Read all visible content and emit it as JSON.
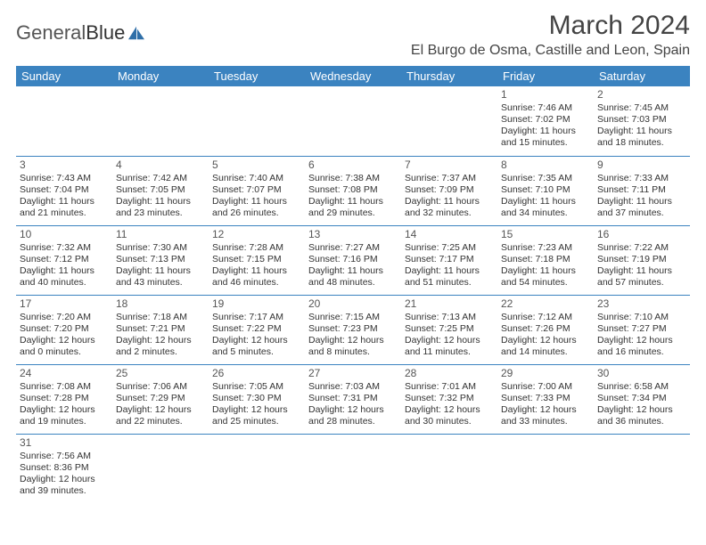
{
  "brand": {
    "part1": "General",
    "part2": "Blue"
  },
  "title": "March 2024",
  "location": "El Burgo de Osma, Castille and Leon, Spain",
  "colors": {
    "header_bg": "#3b83c0",
    "header_text": "#ffffff",
    "border": "#3b83c0",
    "text": "#333333",
    "logo_accent": "#2f6fa8"
  },
  "days_of_week": [
    "Sunday",
    "Monday",
    "Tuesday",
    "Wednesday",
    "Thursday",
    "Friday",
    "Saturday"
  ],
  "weeks": [
    [
      null,
      null,
      null,
      null,
      null,
      {
        "n": "1",
        "sr": "7:46 AM",
        "ss": "7:02 PM",
        "dl": "11 hours and 15 minutes."
      },
      {
        "n": "2",
        "sr": "7:45 AM",
        "ss": "7:03 PM",
        "dl": "11 hours and 18 minutes."
      }
    ],
    [
      {
        "n": "3",
        "sr": "7:43 AM",
        "ss": "7:04 PM",
        "dl": "11 hours and 21 minutes."
      },
      {
        "n": "4",
        "sr": "7:42 AM",
        "ss": "7:05 PM",
        "dl": "11 hours and 23 minutes."
      },
      {
        "n": "5",
        "sr": "7:40 AM",
        "ss": "7:07 PM",
        "dl": "11 hours and 26 minutes."
      },
      {
        "n": "6",
        "sr": "7:38 AM",
        "ss": "7:08 PM",
        "dl": "11 hours and 29 minutes."
      },
      {
        "n": "7",
        "sr": "7:37 AM",
        "ss": "7:09 PM",
        "dl": "11 hours and 32 minutes."
      },
      {
        "n": "8",
        "sr": "7:35 AM",
        "ss": "7:10 PM",
        "dl": "11 hours and 34 minutes."
      },
      {
        "n": "9",
        "sr": "7:33 AM",
        "ss": "7:11 PM",
        "dl": "11 hours and 37 minutes."
      }
    ],
    [
      {
        "n": "10",
        "sr": "7:32 AM",
        "ss": "7:12 PM",
        "dl": "11 hours and 40 minutes."
      },
      {
        "n": "11",
        "sr": "7:30 AM",
        "ss": "7:13 PM",
        "dl": "11 hours and 43 minutes."
      },
      {
        "n": "12",
        "sr": "7:28 AM",
        "ss": "7:15 PM",
        "dl": "11 hours and 46 minutes."
      },
      {
        "n": "13",
        "sr": "7:27 AM",
        "ss": "7:16 PM",
        "dl": "11 hours and 48 minutes."
      },
      {
        "n": "14",
        "sr": "7:25 AM",
        "ss": "7:17 PM",
        "dl": "11 hours and 51 minutes."
      },
      {
        "n": "15",
        "sr": "7:23 AM",
        "ss": "7:18 PM",
        "dl": "11 hours and 54 minutes."
      },
      {
        "n": "16",
        "sr": "7:22 AM",
        "ss": "7:19 PM",
        "dl": "11 hours and 57 minutes."
      }
    ],
    [
      {
        "n": "17",
        "sr": "7:20 AM",
        "ss": "7:20 PM",
        "dl": "12 hours and 0 minutes."
      },
      {
        "n": "18",
        "sr": "7:18 AM",
        "ss": "7:21 PM",
        "dl": "12 hours and 2 minutes."
      },
      {
        "n": "19",
        "sr": "7:17 AM",
        "ss": "7:22 PM",
        "dl": "12 hours and 5 minutes."
      },
      {
        "n": "20",
        "sr": "7:15 AM",
        "ss": "7:23 PM",
        "dl": "12 hours and 8 minutes."
      },
      {
        "n": "21",
        "sr": "7:13 AM",
        "ss": "7:25 PM",
        "dl": "12 hours and 11 minutes."
      },
      {
        "n": "22",
        "sr": "7:12 AM",
        "ss": "7:26 PM",
        "dl": "12 hours and 14 minutes."
      },
      {
        "n": "23",
        "sr": "7:10 AM",
        "ss": "7:27 PM",
        "dl": "12 hours and 16 minutes."
      }
    ],
    [
      {
        "n": "24",
        "sr": "7:08 AM",
        "ss": "7:28 PM",
        "dl": "12 hours and 19 minutes."
      },
      {
        "n": "25",
        "sr": "7:06 AM",
        "ss": "7:29 PM",
        "dl": "12 hours and 22 minutes."
      },
      {
        "n": "26",
        "sr": "7:05 AM",
        "ss": "7:30 PM",
        "dl": "12 hours and 25 minutes."
      },
      {
        "n": "27",
        "sr": "7:03 AM",
        "ss": "7:31 PM",
        "dl": "12 hours and 28 minutes."
      },
      {
        "n": "28",
        "sr": "7:01 AM",
        "ss": "7:32 PM",
        "dl": "12 hours and 30 minutes."
      },
      {
        "n": "29",
        "sr": "7:00 AM",
        "ss": "7:33 PM",
        "dl": "12 hours and 33 minutes."
      },
      {
        "n": "30",
        "sr": "6:58 AM",
        "ss": "7:34 PM",
        "dl": "12 hours and 36 minutes."
      }
    ],
    [
      {
        "n": "31",
        "sr": "7:56 AM",
        "ss": "8:36 PM",
        "dl": "12 hours and 39 minutes."
      },
      null,
      null,
      null,
      null,
      null,
      null
    ]
  ],
  "labels": {
    "sunrise": "Sunrise:",
    "sunset": "Sunset:",
    "daylight": "Daylight:"
  }
}
